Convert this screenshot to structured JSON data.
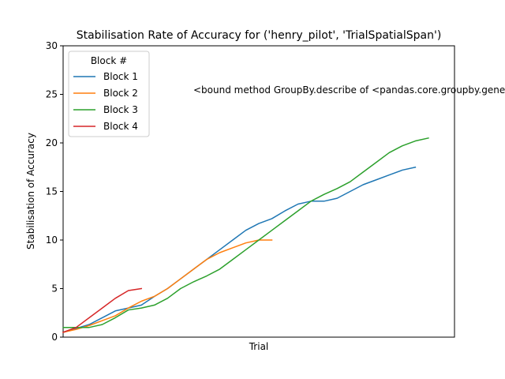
{
  "chart_data": {
    "type": "line",
    "title": "Stabilisation Rate of Accuracy for ('henry_pilot', 'TrialSpatialSpan')",
    "xlabel": "Trial",
    "ylabel": "Stabilisation of Accuracy",
    "ylim": [
      0,
      30
    ],
    "xlim": [
      0,
      30
    ],
    "yticks": [
      "0",
      "5",
      "10",
      "15",
      "20",
      "25",
      "30"
    ],
    "grid": false,
    "legend": {
      "title": "Block #",
      "placement": "top-left"
    },
    "annotation": "<bound method GroupBy.describe of <pandas.core.groupby.generic.DataFrameGroupBy object",
    "series": [
      {
        "name": "Block 1",
        "color": "#1f77b4",
        "x": [
          0,
          1,
          2,
          3,
          4,
          5,
          6,
          7,
          8,
          9,
          10,
          11,
          12,
          13,
          14,
          15,
          16,
          17,
          18,
          19,
          20,
          21,
          22,
          23,
          24,
          25,
          26,
          27
        ],
        "values": [
          0.5,
          0.9,
          1.3,
          2.0,
          2.7,
          3.0,
          3.3,
          4.2,
          5.0,
          6.0,
          7.0,
          8.0,
          9.0,
          10.0,
          11.0,
          11.7,
          12.2,
          13.0,
          13.7,
          14.0,
          14.0,
          14.3,
          15.0,
          15.7,
          16.2,
          16.7,
          17.2,
          17.5
        ]
      },
      {
        "name": "Block 2",
        "color": "#ff7f0e",
        "x": [
          0,
          1,
          2,
          3,
          4,
          5,
          6,
          7,
          8,
          9,
          10,
          11,
          12,
          13,
          14,
          15,
          16
        ],
        "values": [
          0.5,
          0.8,
          1.2,
          1.7,
          2.2,
          3.0,
          3.7,
          4.2,
          5.0,
          6.0,
          7.0,
          8.0,
          8.7,
          9.2,
          9.7,
          10.0,
          10.0
        ]
      },
      {
        "name": "Block 3",
        "color": "#2ca02c",
        "x": [
          0,
          1,
          2,
          3,
          4,
          5,
          6,
          7,
          8,
          9,
          10,
          11,
          12,
          13,
          14,
          15,
          16,
          17,
          18,
          19,
          20,
          21,
          22,
          23,
          24,
          25,
          26,
          27,
          28
        ],
        "values": [
          1.0,
          1.0,
          1.0,
          1.3,
          2.0,
          2.8,
          3.0,
          3.3,
          4.0,
          5.0,
          5.7,
          6.3,
          7.0,
          8.0,
          9.0,
          10.0,
          11.0,
          12.0,
          13.0,
          14.0,
          14.7,
          15.3,
          16.0,
          17.0,
          18.0,
          19.0,
          19.7,
          20.2,
          20.5
        ]
      },
      {
        "name": "Block 4",
        "color": "#d62728",
        "x": [
          0,
          1,
          2,
          3,
          4,
          5,
          6
        ],
        "values": [
          0.5,
          1.0,
          2.0,
          3.0,
          4.0,
          4.8,
          5.0
        ]
      }
    ]
  }
}
